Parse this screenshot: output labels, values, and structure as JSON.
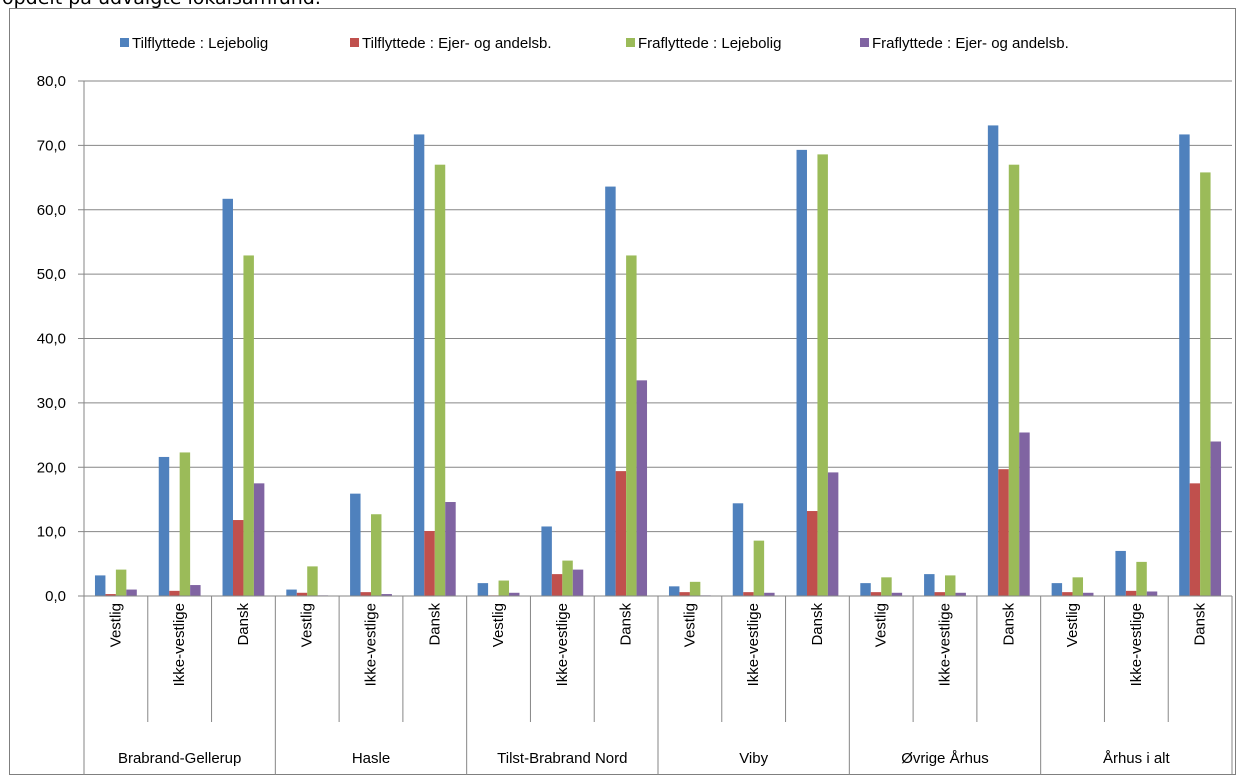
{
  "page": {
    "clipped_heading": "opdelt på udvalgte lokalsamfund."
  },
  "chart_data": {
    "type": "bar",
    "title": "",
    "xlabel": "",
    "ylabel": "",
    "ylim": [
      0,
      80
    ],
    "yticks": [
      "0,0",
      "10,0",
      "20,0",
      "30,0",
      "40,0",
      "50,0",
      "60,0",
      "70,0",
      "80,0"
    ],
    "grid": true,
    "legend_position": "top",
    "groups": [
      "Brabrand-Gellerup",
      "Hasle",
      "Tilst-Brabrand Nord",
      "Viby",
      "Øvrige Århus",
      "Århus i alt"
    ],
    "subcategories": [
      "Vestlig",
      "Ikke-vestlige",
      "Dansk"
    ],
    "series": [
      {
        "name": "Tilflyttede : Lejebolig",
        "color": "#4f81bd",
        "values": [
          3.2,
          21.6,
          61.7,
          1.0,
          15.9,
          71.7,
          2.0,
          10.8,
          63.6,
          1.5,
          14.4,
          69.3,
          2.0,
          3.4,
          73.1,
          2.0,
          7.0,
          71.7
        ]
      },
      {
        "name": "Tilflyttede : Ejer- og andelsb.",
        "color": "#c0504d",
        "values": [
          0.3,
          0.8,
          11.8,
          0.5,
          0.6,
          10.1,
          0.1,
          3.4,
          19.4,
          0.6,
          0.6,
          13.2,
          0.6,
          0.6,
          19.7,
          0.6,
          0.8,
          17.5
        ]
      },
      {
        "name": "Fraflyttede : Lejebolig",
        "color": "#9bbb59",
        "values": [
          4.1,
          22.3,
          52.9,
          4.6,
          12.7,
          67.0,
          2.4,
          5.5,
          52.9,
          2.2,
          8.6,
          68.6,
          2.9,
          3.2,
          67.0,
          2.9,
          5.3,
          65.8
        ]
      },
      {
        "name": "Fraflyttede : Ejer- og andelsb.",
        "color": "#8064a2",
        "values": [
          1.0,
          1.7,
          17.5,
          0.1,
          0.3,
          14.6,
          0.5,
          4.1,
          33.5,
          0.1,
          0.5,
          19.2,
          0.5,
          0.5,
          25.4,
          0.5,
          0.7,
          24.0
        ]
      }
    ]
  }
}
